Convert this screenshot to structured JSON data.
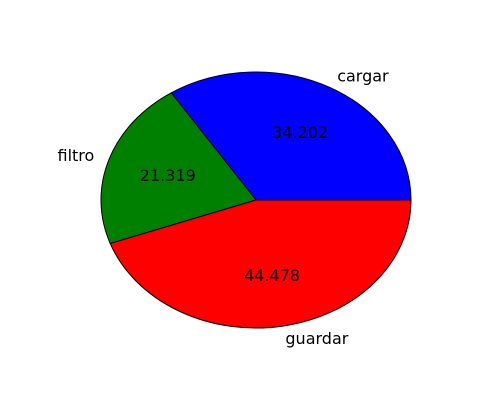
{
  "chart_data": {
    "type": "pie",
    "title": "",
    "categories": [
      "cargar",
      "filtro",
      "guardar"
    ],
    "values": [
      34.202,
      21.319,
      44.478
    ],
    "value_labels": [
      "34.202",
      "21.319",
      "44.478"
    ],
    "colors": [
      "#0000ff",
      "#008000",
      "#ff0000"
    ],
    "start_angle_deg": 0,
    "direction": "counterclockwise",
    "edge_color": "#000000",
    "legend": "none"
  }
}
